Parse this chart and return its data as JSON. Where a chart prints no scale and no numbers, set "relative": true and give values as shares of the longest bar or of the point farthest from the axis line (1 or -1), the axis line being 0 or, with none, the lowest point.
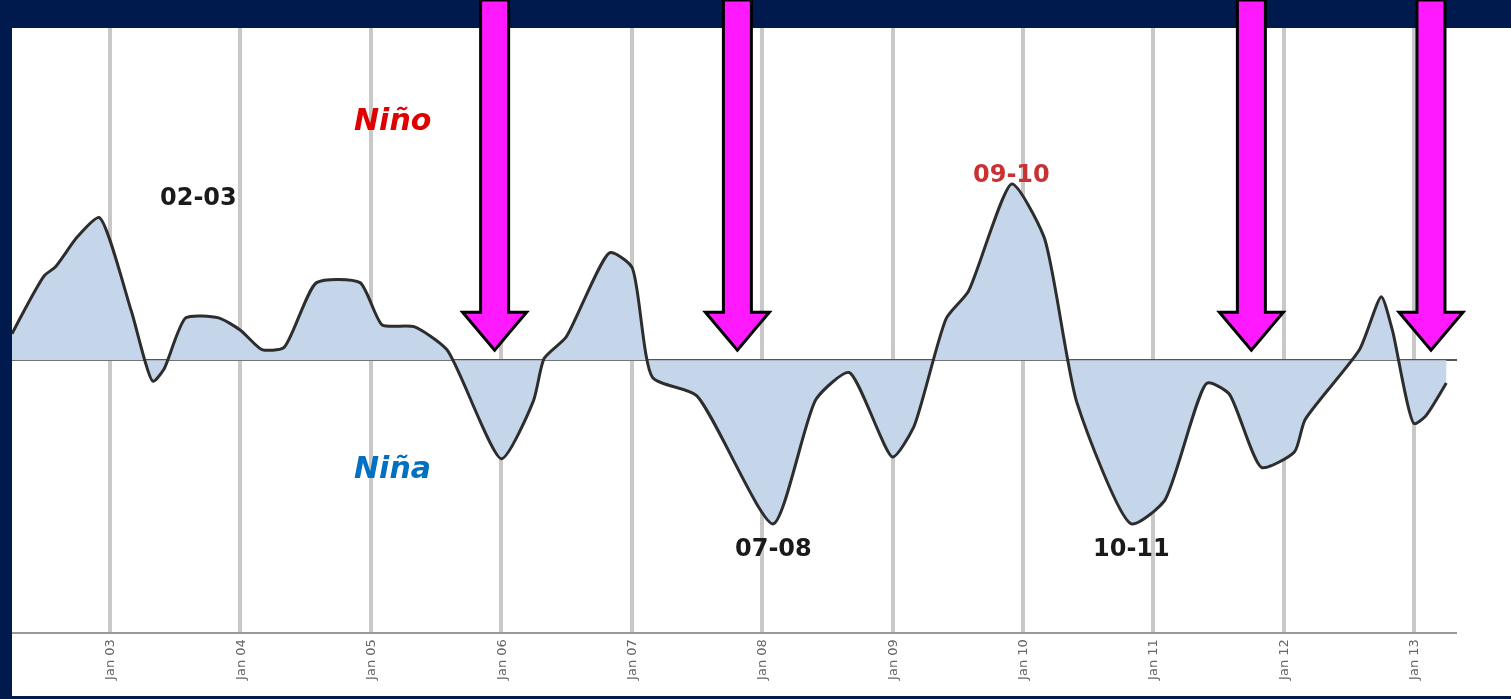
{
  "chart_data": {
    "type": "area",
    "relative": true,
    "grid": "x",
    "marker": "none",
    "line_style": "solid",
    "x": [
      "2002-04",
      "2002-07",
      "2002-08",
      "2002-10",
      "2002-12",
      "2003-03",
      "2003-05",
      "2003-06",
      "2003-08",
      "2003-11",
      "2004-01",
      "2004-03",
      "2004-05",
      "2004-08",
      "2004-12",
      "2005-02",
      "2005-05",
      "2005-08",
      "2006-01",
      "2006-04",
      "2006-05",
      "2006-07",
      "2006-11",
      "2007-01",
      "2007-03",
      "2007-07",
      "2008-02",
      "2008-06",
      "2008-09",
      "2009-01",
      "2009-03",
      "2009-06",
      "2009-08",
      "2009-12",
      "2010-03",
      "2010-06",
      "2010-11",
      "2011-02",
      "2011-06",
      "2011-08",
      "2011-11",
      "2012-02",
      "2012-03",
      "2012-08",
      "2012-10",
      "2012-11",
      "2013-01",
      "2013-02",
      "2013-04"
    ],
    "series": [
      {
        "color": "#c5d6ea",
        "values": [
          0.15,
          0.48,
          0.53,
          0.7,
          0.81,
          0.28,
          -0.12,
          -0.05,
          0.24,
          0.24,
          0.17,
          0.06,
          0.07,
          0.44,
          0.44,
          0.2,
          0.19,
          0.06,
          -0.56,
          -0.23,
          0.01,
          0.13,
          0.61,
          0.53,
          -0.1,
          -0.2,
          -0.93,
          -0.22,
          -0.07,
          -0.55,
          -0.38,
          0.24,
          0.39,
          1,
          0.7,
          -0.24,
          -0.93,
          -0.8,
          -0.13,
          -0.19,
          -0.61,
          -0.52,
          -0.34,
          0.06,
          0.36,
          0.17,
          -0.36,
          -0.32,
          -0.13
        ]
      }
    ],
    "xlim": [
      "2002-04",
      "2013-05"
    ],
    "xticks": [
      {
        "value": "2003-01",
        "label": "Jan 03"
      },
      {
        "value": "2004-01",
        "label": "Jan 04"
      },
      {
        "value": "2005-01",
        "label": "Jan 05"
      },
      {
        "value": "2006-01",
        "label": "Jan 06"
      },
      {
        "value": "2007-01",
        "label": "Jan 07"
      },
      {
        "value": "2008-01",
        "label": "Jan 08"
      },
      {
        "value": "2009-01",
        "label": "Jan 09"
      },
      {
        "value": "2010-01",
        "label": "Jan 10"
      },
      {
        "value": "2011-01",
        "label": "Jan 11"
      },
      {
        "value": "2012-01",
        "label": "Jan 12"
      },
      {
        "value": "2013-01",
        "label": "Jan 13"
      }
    ],
    "annotations": [
      "Niño",
      "Niña",
      {
        "text": "02-03",
        "x": "2002-12",
        "y": 0.81
      },
      {
        "text": "09-10",
        "x": "2009-12",
        "y": 1
      },
      {
        "text": "07-08",
        "x": "2008-02",
        "y": -0.93
      },
      {
        "text": "10-11",
        "x": "2010-11",
        "y": -0.93
      }
    ]
  }
}
